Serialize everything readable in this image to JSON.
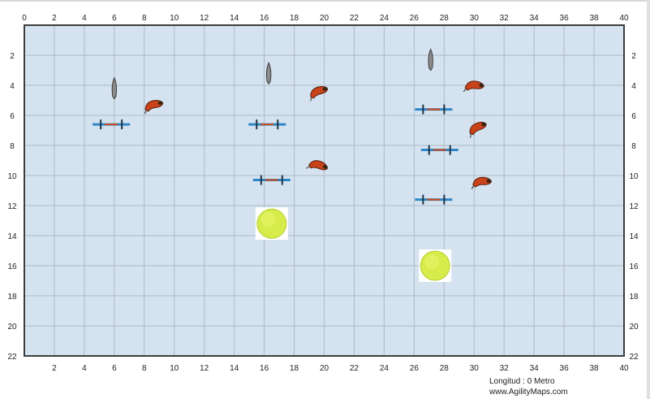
{
  "map": {
    "grid": {
      "x_ticks": [
        0,
        2,
        4,
        6,
        8,
        10,
        12,
        14,
        16,
        18,
        20,
        22,
        24,
        26,
        28,
        30,
        32,
        34,
        36,
        38,
        40
      ],
      "y_ticks": [
        2,
        4,
        6,
        8,
        10,
        12,
        14,
        16,
        18,
        20,
        22
      ],
      "x_max": 40,
      "y_max": 22,
      "field_color": "#d4e3ef",
      "grid_color": "#aebbc6",
      "border_color": "#3d3d3d"
    },
    "footer": {
      "length_label": "Longitud : 0 Metro",
      "website": "www.AgilityMaps.com"
    },
    "obstacles": {
      "bar_jumps": [
        {
          "x": 5.8,
          "y": 6.6
        },
        {
          "x": 16.2,
          "y": 6.6
        },
        {
          "x": 16.5,
          "y": 10.3
        },
        {
          "x": 27.3,
          "y": 5.6
        },
        {
          "x": 27.7,
          "y": 8.3
        },
        {
          "x": 27.3,
          "y": 11.6
        }
      ],
      "dogs": [
        {
          "x": 8.6,
          "y": 5.3,
          "angle": -15
        },
        {
          "x": 19.6,
          "y": 4.4,
          "angle": -20
        },
        {
          "x": 19.6,
          "y": 9.3,
          "angle": 15
        },
        {
          "x": 30.0,
          "y": 4.0,
          "angle": 0
        },
        {
          "x": 30.2,
          "y": 6.8,
          "angle": -25
        },
        {
          "x": 30.5,
          "y": 10.4,
          "angle": -5
        }
      ],
      "cones": [
        {
          "x": 6.0,
          "y": 4.2
        },
        {
          "x": 16.3,
          "y": 3.2
        },
        {
          "x": 27.1,
          "y": 2.3
        }
      ],
      "tennis_balls": [
        {
          "x": 16.5,
          "y": 13.2
        },
        {
          "x": 27.4,
          "y": 16.0
        }
      ]
    }
  }
}
